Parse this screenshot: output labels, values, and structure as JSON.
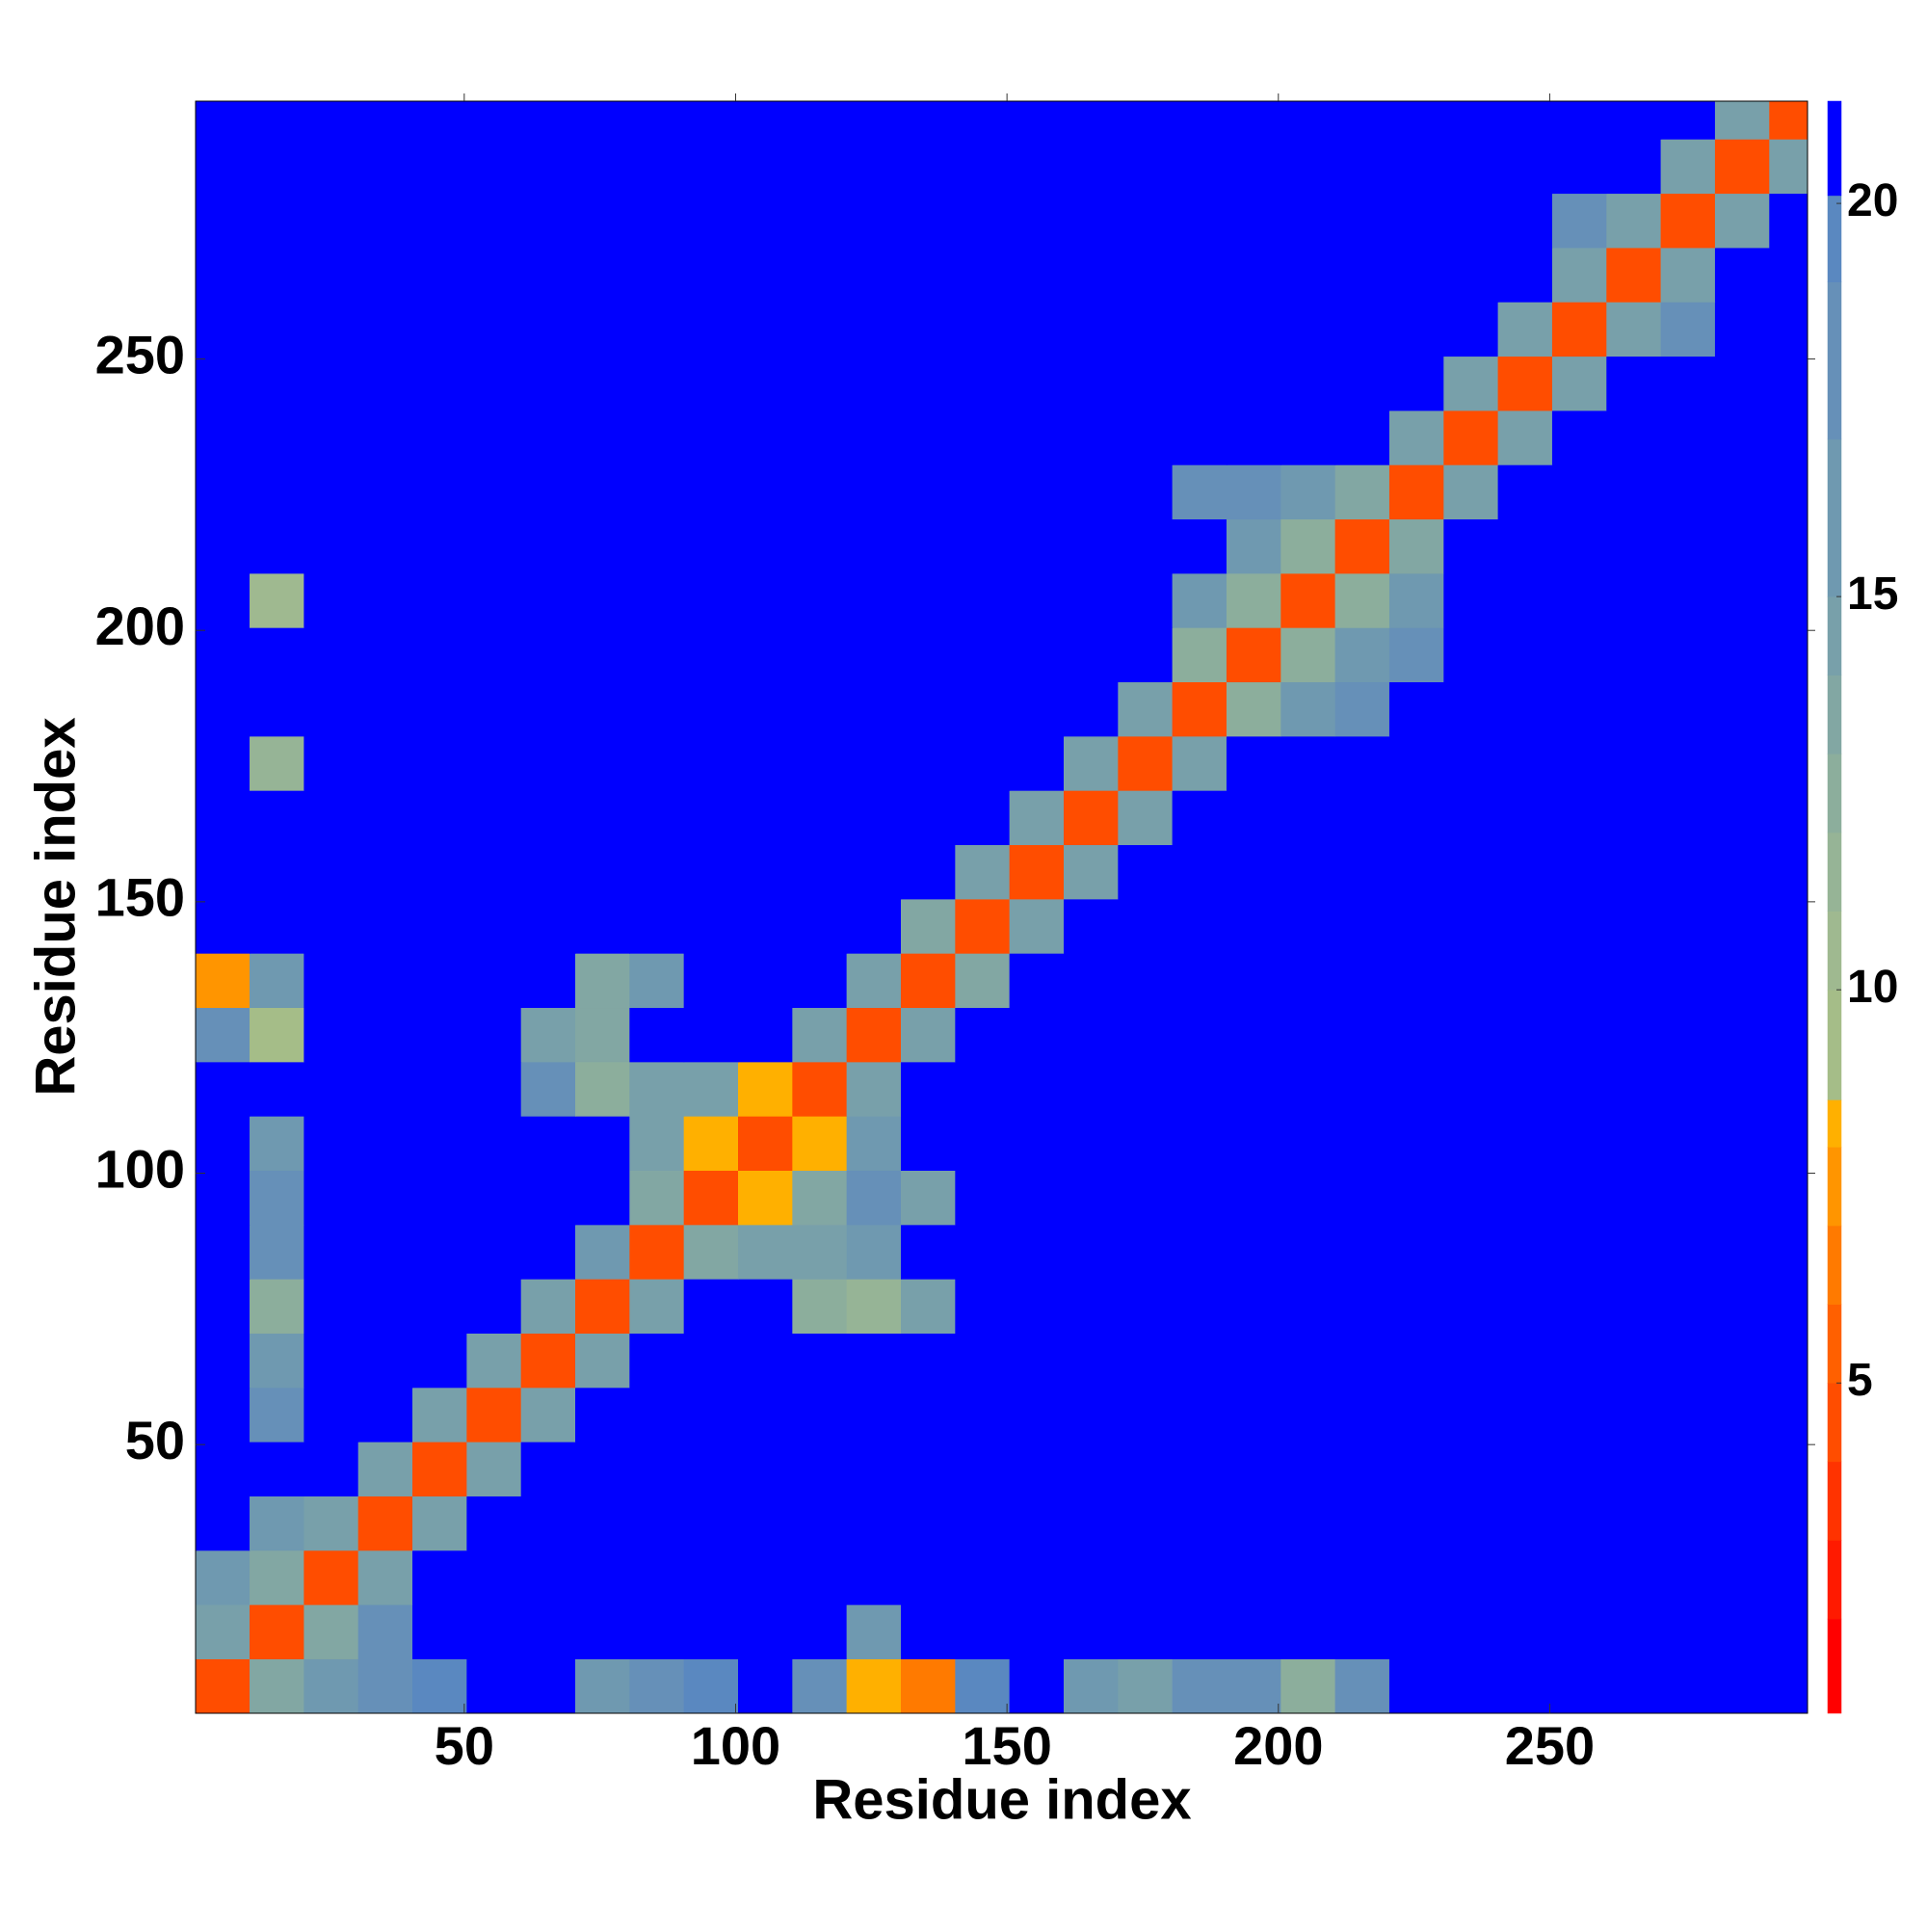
{
  "chart_data": {
    "type": "heatmap",
    "xlabel": "Residue index",
    "ylabel": "Residue index",
    "xlim": [
      0.5,
      297.5
    ],
    "ylim": [
      0.5,
      297.5
    ],
    "xticks": [
      50,
      100,
      150,
      200,
      250
    ],
    "yticks": [
      50,
      100,
      150,
      200,
      250
    ],
    "bin_edges": [
      0.5,
      10.5,
      20.5,
      30.5,
      40.5,
      50.5,
      60.5,
      70.5,
      80.5,
      90.5,
      100.5,
      110.5,
      120.5,
      130.5,
      140.5,
      150.5,
      160.5,
      170.5,
      180.5,
      190.5,
      200.5,
      210.5,
      220.5,
      230.5,
      240.5,
      250.5,
      260.5,
      270.5,
      280.5,
      290.5,
      297.5
    ],
    "z": [
      [
        4,
        13,
        16,
        18,
        19,
        21,
        21,
        15,
        17,
        19,
        21,
        17,
        8,
        6,
        19,
        21,
        16,
        14,
        18,
        18,
        12,
        17,
        21,
        21,
        21,
        21,
        21,
        21,
        21,
        21
      ],
      [
        14,
        4,
        13,
        17,
        21,
        21,
        21,
        21,
        21,
        21,
        21,
        21,
        16,
        21,
        21,
        21,
        21,
        21,
        21,
        21,
        21,
        21,
        21,
        21,
        21,
        21,
        21,
        21,
        21,
        21
      ],
      [
        15,
        13,
        4,
        14,
        21,
        21,
        21,
        21,
        21,
        21,
        21,
        21,
        21,
        21,
        21,
        21,
        21,
        21,
        21,
        21,
        21,
        21,
        21,
        21,
        21,
        21,
        21,
        21,
        21,
        21
      ],
      [
        21,
        16,
        14,
        4,
        14,
        21,
        21,
        21,
        21,
        21,
        21,
        21,
        21,
        21,
        21,
        21,
        21,
        21,
        21,
        21,
        21,
        21,
        21,
        21,
        21,
        21,
        21,
        21,
        21,
        21
      ],
      [
        21,
        21,
        21,
        14,
        4,
        14,
        21,
        21,
        21,
        21,
        21,
        21,
        21,
        21,
        21,
        21,
        21,
        21,
        21,
        21,
        21,
        21,
        21,
        21,
        21,
        21,
        21,
        21,
        21,
        21
      ],
      [
        21,
        17,
        21,
        21,
        14,
        4,
        14,
        21,
        21,
        21,
        21,
        21,
        21,
        21,
        21,
        21,
        21,
        21,
        21,
        21,
        21,
        21,
        21,
        21,
        21,
        21,
        21,
        21,
        21,
        21
      ],
      [
        21,
        15,
        21,
        21,
        21,
        14,
        4,
        14,
        21,
        21,
        21,
        21,
        21,
        21,
        21,
        21,
        21,
        21,
        21,
        21,
        21,
        21,
        21,
        21,
        21,
        21,
        21,
        21,
        21,
        21
      ],
      [
        21,
        12,
        21,
        21,
        21,
        21,
        14,
        4,
        14,
        21,
        21,
        12,
        11,
        14,
        21,
        21,
        21,
        21,
        21,
        21,
        21,
        21,
        21,
        21,
        21,
        21,
        21,
        21,
        21,
        21
      ],
      [
        21,
        17,
        21,
        21,
        21,
        21,
        21,
        16,
        4,
        13,
        14,
        14,
        16,
        21,
        21,
        21,
        21,
        21,
        21,
        21,
        21,
        21,
        21,
        21,
        21,
        21,
        21,
        21,
        21,
        21
      ],
      [
        21,
        18,
        21,
        21,
        21,
        21,
        21,
        21,
        13,
        4,
        8,
        13,
        17,
        14,
        21,
        21,
        21,
        21,
        21,
        21,
        21,
        21,
        21,
        21,
        21,
        21,
        21,
        21,
        21,
        21
      ],
      [
        21,
        16,
        21,
        21,
        21,
        21,
        21,
        21,
        14,
        8,
        4,
        8,
        15,
        21,
        21,
        21,
        21,
        21,
        21,
        21,
        21,
        21,
        21,
        21,
        21,
        21,
        21,
        21,
        21,
        21
      ],
      [
        21,
        21,
        21,
        21,
        21,
        21,
        17,
        12,
        14,
        14,
        8,
        4,
        14,
        21,
        21,
        21,
        21,
        21,
        21,
        21,
        21,
        21,
        21,
        21,
        21,
        21,
        21,
        21,
        21,
        21
      ],
      [
        17,
        9,
        21,
        21,
        21,
        21,
        14,
        13,
        21,
        21,
        21,
        14,
        4,
        14,
        21,
        21,
        21,
        21,
        21,
        21,
        21,
        21,
        21,
        21,
        21,
        21,
        21,
        21,
        21,
        21
      ],
      [
        7,
        16,
        21,
        21,
        21,
        21,
        21,
        13,
        16,
        21,
        21,
        21,
        14,
        4,
        13,
        21,
        21,
        21,
        21,
        21,
        21,
        21,
        21,
        21,
        21,
        21,
        21,
        21,
        21,
        21
      ],
      [
        21,
        21,
        21,
        21,
        21,
        21,
        21,
        21,
        21,
        21,
        21,
        21,
        21,
        13,
        4,
        14,
        21,
        21,
        21,
        21,
        21,
        21,
        21,
        21,
        21,
        21,
        21,
        21,
        21,
        21
      ],
      [
        21,
        21,
        21,
        21,
        21,
        21,
        21,
        21,
        21,
        21,
        21,
        21,
        21,
        21,
        14,
        4,
        14,
        21,
        21,
        21,
        21,
        21,
        21,
        21,
        21,
        21,
        21,
        21,
        21,
        21
      ],
      [
        21,
        21,
        21,
        21,
        21,
        21,
        21,
        21,
        21,
        21,
        21,
        21,
        21,
        21,
        21,
        14,
        4,
        14,
        21,
        21,
        21,
        21,
        21,
        21,
        21,
        21,
        21,
        21,
        21,
        21
      ],
      [
        21,
        11,
        21,
        21,
        21,
        21,
        21,
        21,
        21,
        21,
        21,
        21,
        21,
        21,
        21,
        21,
        14,
        4,
        14,
        21,
        21,
        21,
        21,
        21,
        21,
        21,
        21,
        21,
        21,
        21
      ],
      [
        21,
        21,
        21,
        21,
        21,
        21,
        21,
        21,
        21,
        21,
        21,
        21,
        21,
        21,
        21,
        21,
        21,
        14,
        4,
        12,
        15,
        17,
        21,
        21,
        21,
        21,
        21,
        21,
        21,
        21
      ],
      [
        21,
        21,
        21,
        21,
        21,
        21,
        21,
        21,
        21,
        21,
        21,
        21,
        21,
        21,
        21,
        21,
        21,
        21,
        12,
        4,
        12,
        15,
        18,
        21,
        21,
        21,
        21,
        21,
        21,
        21
      ],
      [
        21,
        10,
        21,
        21,
        21,
        21,
        21,
        21,
        21,
        21,
        21,
        21,
        21,
        21,
        21,
        21,
        21,
        21,
        15,
        12,
        4,
        12,
        16,
        21,
        21,
        21,
        21,
        21,
        21,
        21
      ],
      [
        21,
        21,
        21,
        21,
        21,
        21,
        21,
        21,
        21,
        21,
        21,
        21,
        21,
        21,
        21,
        21,
        21,
        21,
        21,
        16,
        12,
        4,
        13,
        21,
        21,
        21,
        21,
        21,
        21,
        21
      ],
      [
        21,
        21,
        21,
        21,
        21,
        21,
        21,
        21,
        21,
        21,
        21,
        21,
        21,
        21,
        21,
        21,
        21,
        21,
        17,
        17,
        16,
        13,
        4,
        14,
        21,
        21,
        21,
        21,
        21,
        21
      ],
      [
        21,
        21,
        21,
        21,
        21,
        21,
        21,
        21,
        21,
        21,
        21,
        21,
        21,
        21,
        21,
        21,
        21,
        21,
        21,
        21,
        21,
        21,
        14,
        4,
        14,
        21,
        21,
        21,
        21,
        21
      ],
      [
        21,
        21,
        21,
        21,
        21,
        21,
        21,
        21,
        21,
        21,
        21,
        21,
        21,
        21,
        21,
        21,
        21,
        21,
        21,
        21,
        21,
        21,
        21,
        14,
        4,
        14,
        21,
        21,
        21,
        21
      ],
      [
        21,
        21,
        21,
        21,
        21,
        21,
        21,
        21,
        21,
        21,
        21,
        21,
        21,
        21,
        21,
        21,
        21,
        21,
        21,
        21,
        21,
        21,
        21,
        21,
        14,
        4,
        14,
        17,
        21,
        21
      ],
      [
        21,
        21,
        21,
        21,
        21,
        21,
        21,
        21,
        21,
        21,
        21,
        21,
        21,
        21,
        21,
        21,
        21,
        21,
        21,
        21,
        21,
        21,
        21,
        21,
        21,
        14,
        4,
        14,
        21,
        21
      ],
      [
        21,
        21,
        21,
        21,
        21,
        21,
        21,
        21,
        21,
        21,
        21,
        21,
        21,
        21,
        21,
        21,
        21,
        21,
        21,
        21,
        21,
        21,
        21,
        21,
        21,
        17,
        14,
        4,
        14,
        21
      ],
      [
        21,
        21,
        21,
        21,
        21,
        21,
        21,
        21,
        21,
        21,
        21,
        21,
        21,
        21,
        21,
        21,
        21,
        21,
        21,
        21,
        21,
        21,
        21,
        21,
        21,
        21,
        21,
        14,
        4,
        14
      ],
      [
        21,
        21,
        21,
        21,
        21,
        21,
        21,
        21,
        21,
        21,
        21,
        21,
        21,
        21,
        21,
        21,
        21,
        21,
        21,
        21,
        21,
        21,
        21,
        21,
        21,
        21,
        21,
        21,
        14,
        4
      ]
    ],
    "zlim": [
      0.8,
      21.3
    ],
    "zticks": [
      5,
      10,
      15,
      20
    ],
    "colorscale": [
      {
        "value": 0.8,
        "color": "#ff0000"
      },
      {
        "value": 2,
        "color": "#ff1a00"
      },
      {
        "value": 3,
        "color": "#ff3300"
      },
      {
        "value": 4,
        "color": "#ff4d00"
      },
      {
        "value": 5,
        "color": "#ff6000"
      },
      {
        "value": 6,
        "color": "#ff7a00"
      },
      {
        "value": 7,
        "color": "#ff9500"
      },
      {
        "value": 8,
        "color": "#ffb000"
      },
      {
        "value": 8.6,
        "color": "#a5bd88"
      },
      {
        "value": 10,
        "color": "#9fb990"
      },
      {
        "value": 11,
        "color": "#96b496"
      },
      {
        "value": 12,
        "color": "#8cae9c"
      },
      {
        "value": 13,
        "color": "#82a7a3"
      },
      {
        "value": 14,
        "color": "#78a0aa"
      },
      {
        "value": 15,
        "color": "#6f99b0"
      },
      {
        "value": 17,
        "color": "#6690b8"
      },
      {
        "value": 19,
        "color": "#5a88c0"
      },
      {
        "value": 20.1,
        "color": "#0000ff"
      }
    ]
  }
}
